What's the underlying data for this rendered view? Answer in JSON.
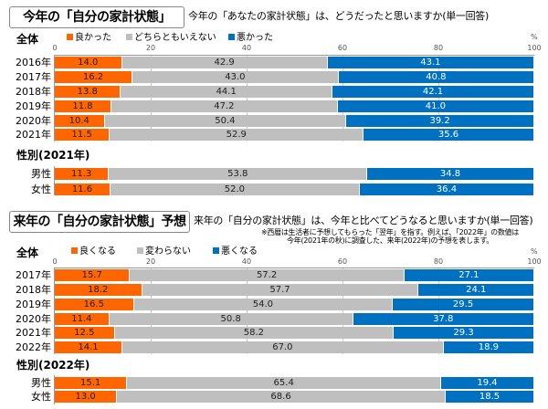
{
  "sections": [
    {
      "title": "今年の「自分の家計状態」",
      "question": "今年の「あなたの家計状態」は、どうだったと思いますか(単一回答)",
      "total_label": "全体",
      "legend": [
        "良かった",
        "どちらともいえない",
        "悪かった"
      ],
      "group_label": "性別(2021年)"
    },
    {
      "title": "来年の「自分の家計状態」予想",
      "question": "来年の「自分の家計状態」は、今年と比べてどうなると思いますか(単一回答)",
      "note_line1": "※西暦は生活者に予想してもらった「翌年」を指す。例えば、「2022年」の数値は",
      "note_line2": "今年(2021年の秋)に調査した、来年(2022年)の予想を表します。",
      "total_label": "全体",
      "legend": [
        "良くなる",
        "変わらない",
        "悪くなる"
      ],
      "group_label": "性別(2022年)"
    }
  ],
  "colors": [
    "#ff6600",
    "#bfbfbf",
    "#0070c0"
  ],
  "chart_data": [
    {
      "type": "bar",
      "stacked": true,
      "orientation": "horizontal",
      "xlim": [
        0,
        100
      ],
      "unit": "%",
      "ticks": [
        "0",
        "20",
        "40",
        "60",
        "80",
        "100"
      ],
      "categories": [
        "2016年",
        "2017年",
        "2018年",
        "2019年",
        "2020年",
        "2021年",
        "男性",
        "女性"
      ],
      "series": [
        {
          "name": "良かった",
          "values": [
            "14.0",
            "16.2",
            "13.8",
            "11.8",
            "10.4",
            "11.5",
            "11.3",
            "11.6"
          ]
        },
        {
          "name": "どちらともいえない",
          "values": [
            "42.9",
            "43.0",
            "44.1",
            "47.2",
            "50.4",
            "52.9",
            "53.8",
            "52.0"
          ]
        },
        {
          "name": "悪かった",
          "values": [
            "43.1",
            "40.8",
            "42.1",
            "41.0",
            "39.2",
            "35.6",
            "34.8",
            "36.4"
          ]
        }
      ]
    },
    {
      "type": "bar",
      "stacked": true,
      "orientation": "horizontal",
      "xlim": [
        0,
        100
      ],
      "unit": "%",
      "ticks": [
        "0",
        "20",
        "40",
        "60",
        "80",
        "100"
      ],
      "categories": [
        "2017年",
        "2018年",
        "2019年",
        "2020年",
        "2021年",
        "2022年",
        "男性",
        "女性"
      ],
      "series": [
        {
          "name": "良くなる",
          "values": [
            "15.7",
            "18.2",
            "16.5",
            "11.4",
            "12.5",
            "14.1",
            "15.1",
            "13.0"
          ]
        },
        {
          "name": "変わらない",
          "values": [
            "57.2",
            "57.7",
            "54.0",
            "50.8",
            "58.2",
            "67.0",
            "65.4",
            "68.6"
          ]
        },
        {
          "name": "悪くなる",
          "values": [
            "27.1",
            "24.1",
            "29.5",
            "37.8",
            "29.3",
            "18.9",
            "19.4",
            "18.5"
          ]
        }
      ]
    }
  ]
}
